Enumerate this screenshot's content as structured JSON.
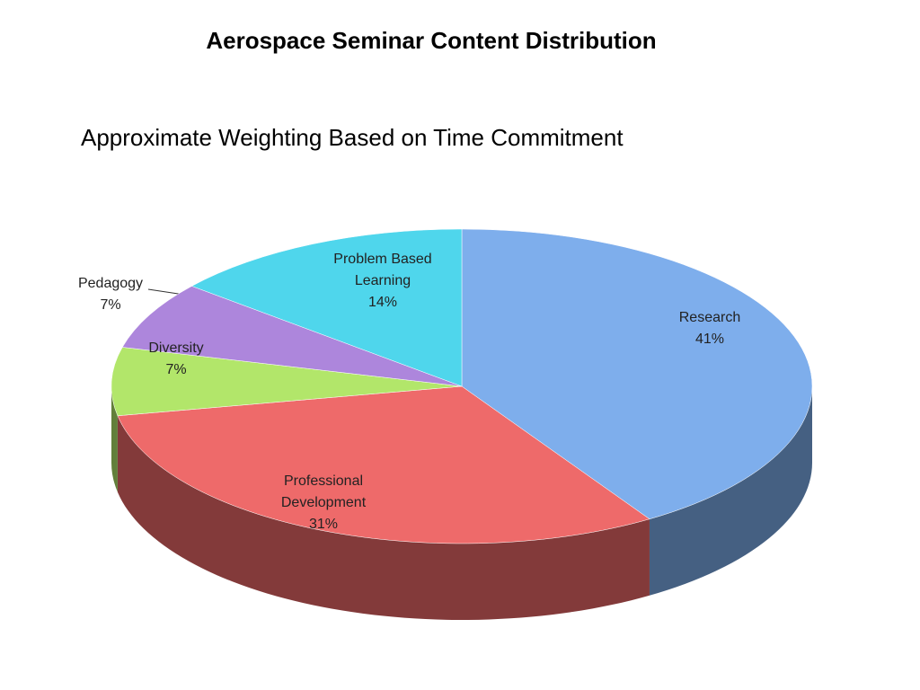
{
  "chart_data": {
    "type": "pie3d",
    "title": "Aerospace Seminar Content Distribution",
    "subtitle": "Approximate Weighting Based on Time Commitment",
    "categories": [
      "Research",
      "Professional Development",
      "Diversity",
      "Pedagogy",
      "Problem Based Learning"
    ],
    "values": [
      41,
      31,
      7,
      7,
      14
    ],
    "value_labels": [
      "41%",
      "31%",
      "7%",
      "7%",
      "14%"
    ],
    "colors": [
      "#7eaeec",
      "#ee6a6a",
      "#b2e66a",
      "#ad86dc",
      "#4fd6ec"
    ]
  }
}
